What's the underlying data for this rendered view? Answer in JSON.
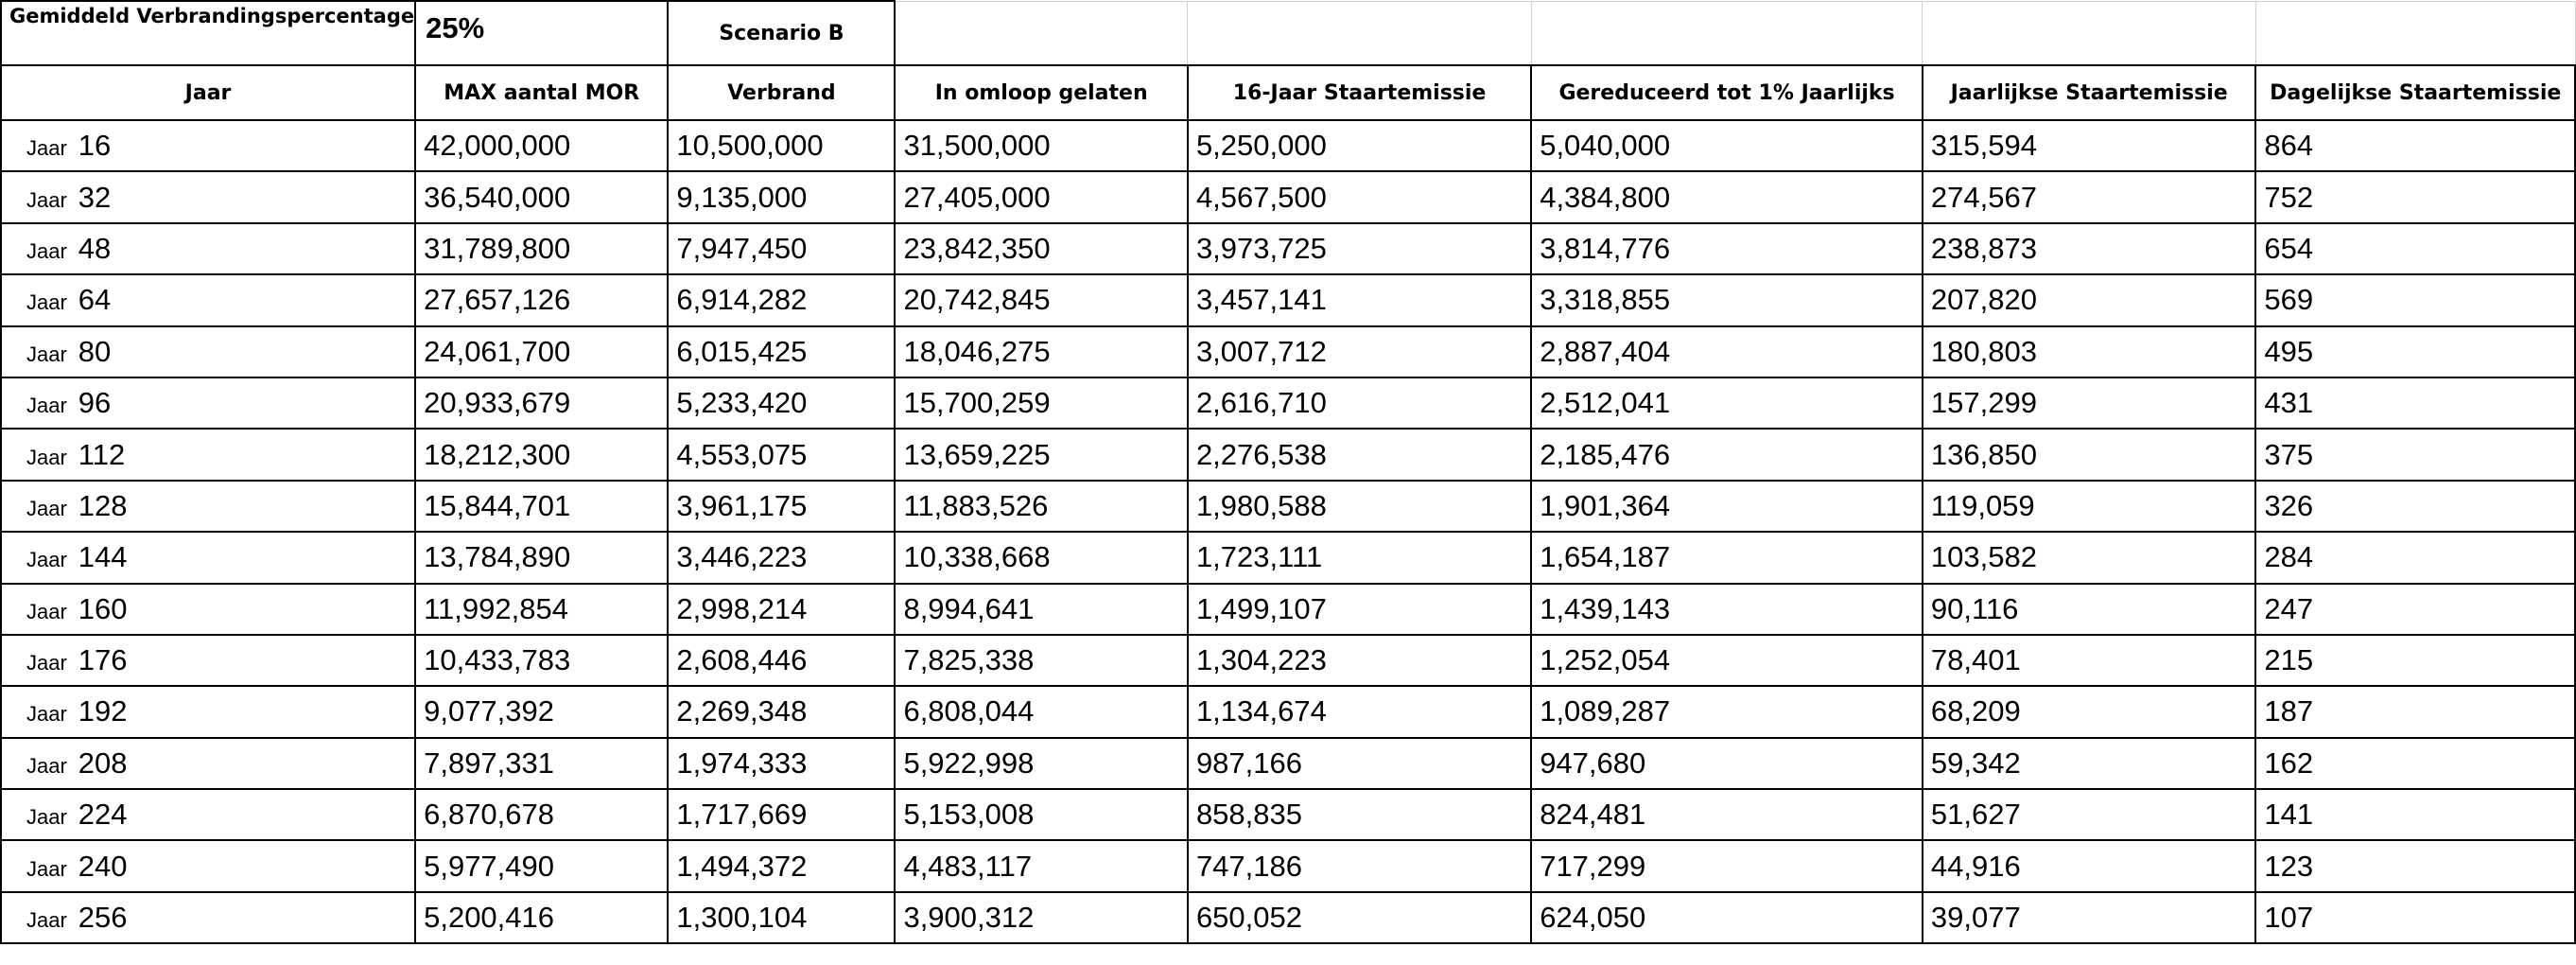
{
  "sheet": {
    "top_label": "Gemiddeld Verbrandingspercentage",
    "top_value": "25%",
    "scenario": "Scenario B",
    "headers": [
      "Jaar",
      "MAX aantal MOR",
      "Verbrand",
      "In omloop gelaten",
      "16-Jaar Staartemissie",
      "Gereduceerd tot 1% Jaarlijks",
      "Jaarlijkse Staartemissie",
      "Dagelijkse Staartemissie"
    ],
    "year_prefix": "Jaar",
    "rows": [
      {
        "year": "16",
        "values": [
          "42,000,000",
          "10,500,000",
          "31,500,000",
          "5,250,000",
          "5,040,000",
          "315,594",
          "864"
        ]
      },
      {
        "year": "32",
        "values": [
          "36,540,000",
          "9,135,000",
          "27,405,000",
          "4,567,500",
          "4,384,800",
          "274,567",
          "752"
        ]
      },
      {
        "year": "48",
        "values": [
          "31,789,800",
          "7,947,450",
          "23,842,350",
          "3,973,725",
          "3,814,776",
          "238,873",
          "654"
        ]
      },
      {
        "year": "64",
        "values": [
          "27,657,126",
          "6,914,282",
          "20,742,845",
          "3,457,141",
          "3,318,855",
          "207,820",
          "569"
        ]
      },
      {
        "year": "80",
        "values": [
          "24,061,700",
          "6,015,425",
          "18,046,275",
          "3,007,712",
          "2,887,404",
          "180,803",
          "495"
        ]
      },
      {
        "year": "96",
        "values": [
          "20,933,679",
          "5,233,420",
          "15,700,259",
          "2,616,710",
          "2,512,041",
          "157,299",
          "431"
        ]
      },
      {
        "year": "112",
        "values": [
          "18,212,300",
          "4,553,075",
          "13,659,225",
          "2,276,538",
          "2,185,476",
          "136,850",
          "375"
        ]
      },
      {
        "year": "128",
        "values": [
          "15,844,701",
          "3,961,175",
          "11,883,526",
          "1,980,588",
          "1,901,364",
          "119,059",
          "326"
        ]
      },
      {
        "year": "144",
        "values": [
          "13,784,890",
          "3,446,223",
          "10,338,668",
          "1,723,111",
          "1,654,187",
          "103,582",
          "284"
        ]
      },
      {
        "year": "160",
        "values": [
          "11,992,854",
          "2,998,214",
          "8,994,641",
          "1,499,107",
          "1,439,143",
          "90,116",
          "247"
        ]
      },
      {
        "year": "176",
        "values": [
          "10,433,783",
          "2,608,446",
          "7,825,338",
          "1,304,223",
          "1,252,054",
          "78,401",
          "215"
        ]
      },
      {
        "year": "192",
        "values": [
          "9,077,392",
          "2,269,348",
          "6,808,044",
          "1,134,674",
          "1,089,287",
          "68,209",
          "187"
        ]
      },
      {
        "year": "208",
        "values": [
          "7,897,331",
          "1,974,333",
          "5,922,998",
          "987,166",
          "947,680",
          "59,342",
          "162"
        ]
      },
      {
        "year": "224",
        "values": [
          "6,870,678",
          "1,717,669",
          "5,153,008",
          "858,835",
          "824,481",
          "51,627",
          "141"
        ]
      },
      {
        "year": "240",
        "values": [
          "5,977,490",
          "1,494,372",
          "4,483,117",
          "747,186",
          "717,299",
          "44,916",
          "123"
        ]
      },
      {
        "year": "256",
        "values": [
          "5,200,416",
          "1,300,104",
          "3,900,312",
          "650,052",
          "624,050",
          "39,077",
          "107"
        ]
      }
    ]
  }
}
